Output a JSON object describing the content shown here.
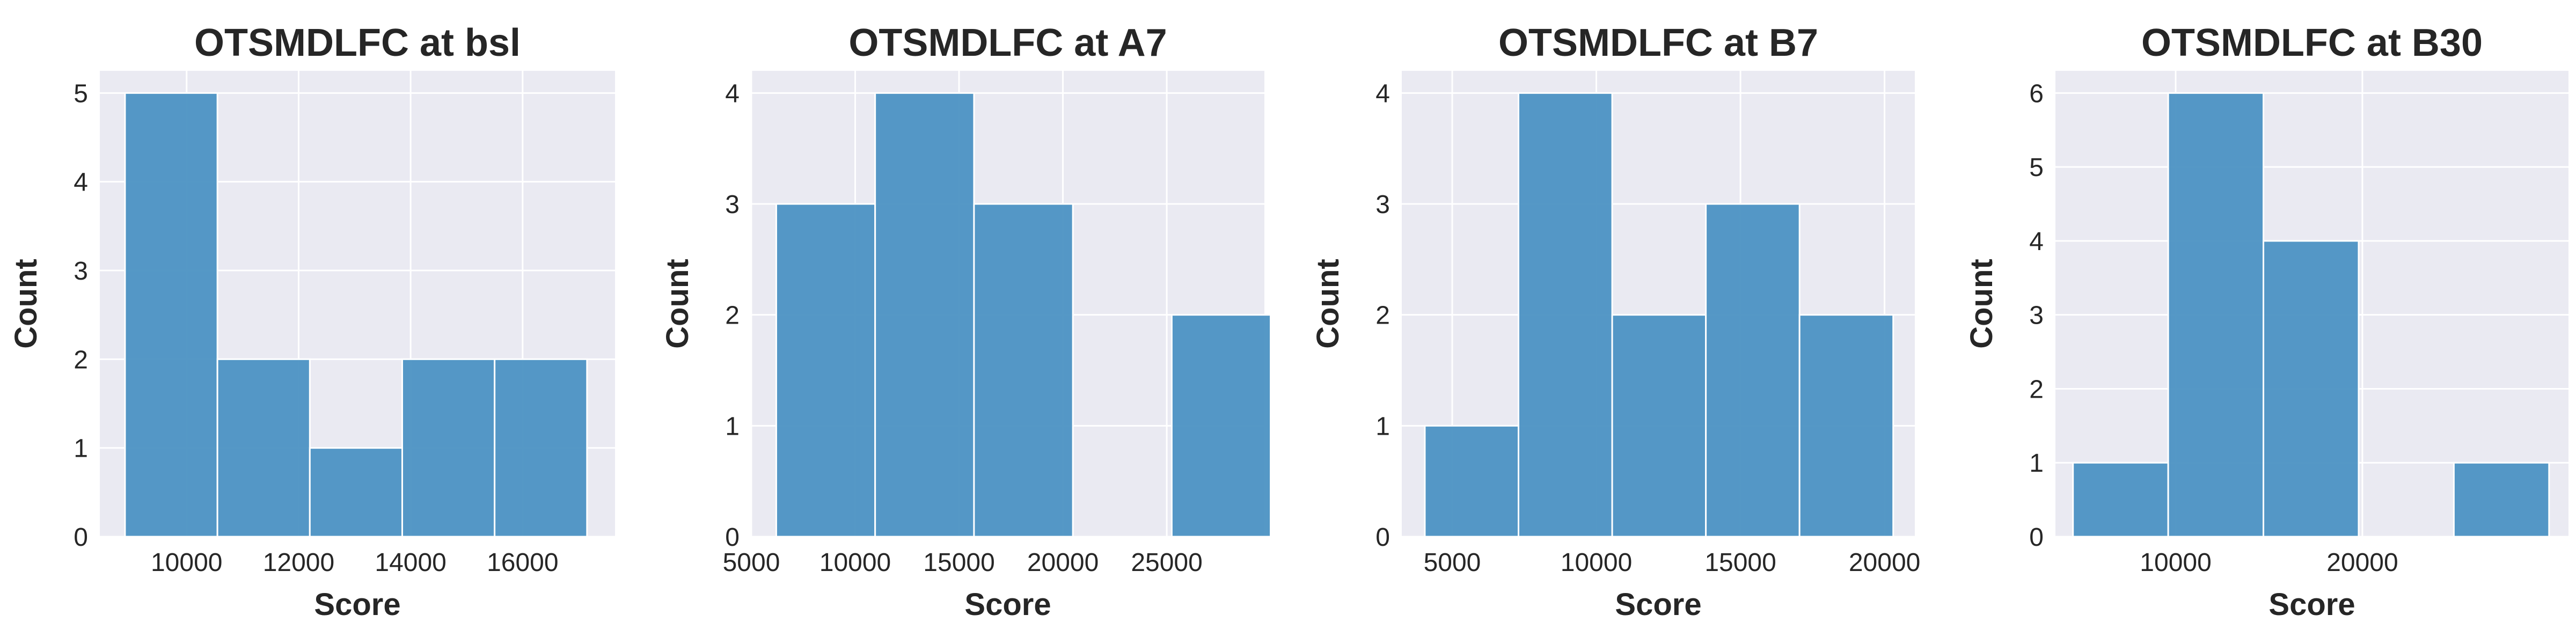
{
  "figure": {
    "background": "#ffffff",
    "plot_background": "#eaeaf2",
    "grid_color": "#ffffff",
    "bar_color": "#4c92c3",
    "bar_edge_color": "#ffffff"
  },
  "chart_data": [
    {
      "type": "bar",
      "title": "OTSMDLFC at bsl",
      "xlabel": "Score",
      "ylabel": "Count",
      "xlim": [
        8450,
        17650
      ],
      "ylim": [
        0,
        5.25
      ],
      "xticks": [
        10000,
        12000,
        14000,
        16000
      ],
      "xtick_labels": [
        "10000",
        "12000",
        "14000",
        "16000"
      ],
      "yticks": [
        0,
        1,
        2,
        3,
        4,
        5
      ],
      "ytick_labels": [
        "0",
        "1",
        "2",
        "3",
        "4",
        "5"
      ],
      "bins": [
        {
          "x0": 8900,
          "x1": 10550,
          "count": 5
        },
        {
          "x0": 10550,
          "x1": 12200,
          "count": 2
        },
        {
          "x0": 12200,
          "x1": 13850,
          "count": 1
        },
        {
          "x0": 13850,
          "x1": 15500,
          "count": 2
        },
        {
          "x0": 15500,
          "x1": 17150,
          "count": 2
        }
      ],
      "grid": true
    },
    {
      "type": "bar",
      "title": "OTSMDLFC at A7",
      "xlabel": "Score",
      "ylabel": "Count",
      "xlim": [
        5000,
        29700
      ],
      "ylim": [
        0,
        4.2
      ],
      "xticks": [
        5000,
        10000,
        15000,
        20000,
        25000
      ],
      "xtick_labels": [
        "5000",
        "10000",
        "15000",
        "20000",
        "25000"
      ],
      "yticks": [
        0,
        1,
        2,
        3,
        4
      ],
      "ytick_labels": [
        "0",
        "1",
        "2",
        "3",
        "4"
      ],
      "bins": [
        {
          "x0": 6200,
          "x1": 10960,
          "count": 3
        },
        {
          "x0": 10960,
          "x1": 15720,
          "count": 4
        },
        {
          "x0": 15720,
          "x1": 20480,
          "count": 3
        },
        {
          "x0": 20480,
          "x1": 25240,
          "count": 0
        },
        {
          "x0": 25240,
          "x1": 30000,
          "count": 2
        }
      ],
      "grid": true
    },
    {
      "type": "bar",
      "title": "OTSMDLFC at B7",
      "xlabel": "Score",
      "ylabel": "Count",
      "xlim": [
        3250,
        21050
      ],
      "ylim": [
        0,
        4.2
      ],
      "xticks": [
        5000,
        10000,
        15000,
        20000
      ],
      "xtick_labels": [
        "5000",
        "10000",
        "15000",
        "20000"
      ],
      "yticks": [
        0,
        1,
        2,
        3,
        4
      ],
      "ytick_labels": [
        "0",
        "1",
        "2",
        "3",
        "4"
      ],
      "bins": [
        {
          "x0": 4050,
          "x1": 7300,
          "count": 1
        },
        {
          "x0": 7300,
          "x1": 10550,
          "count": 4
        },
        {
          "x0": 10550,
          "x1": 13800,
          "count": 2
        },
        {
          "x0": 13800,
          "x1": 17050,
          "count": 3
        },
        {
          "x0": 17050,
          "x1": 20300,
          "count": 2
        }
      ],
      "grid": true
    },
    {
      "type": "bar",
      "title": "OTSMDLFC at B30",
      "xlabel": "Score",
      "ylabel": "Count",
      "xlim": [
        3560,
        31040
      ],
      "ylim": [
        0,
        6.3
      ],
      "xticks": [
        10000,
        20000
      ],
      "xtick_labels": [
        "10000",
        "20000"
      ],
      "yticks": [
        0,
        1,
        2,
        3,
        4,
        5,
        6
      ],
      "ytick_labels": [
        "0",
        "1",
        "2",
        "3",
        "4",
        "5",
        "6"
      ],
      "bins": [
        {
          "x0": 4500,
          "x1": 9600,
          "count": 1
        },
        {
          "x0": 9600,
          "x1": 14700,
          "count": 6
        },
        {
          "x0": 14700,
          "x1": 19800,
          "count": 4
        },
        {
          "x0": 19800,
          "x1": 24900,
          "count": 0
        },
        {
          "x0": 24900,
          "x1": 30000,
          "count": 1
        }
      ],
      "grid": true
    }
  ]
}
